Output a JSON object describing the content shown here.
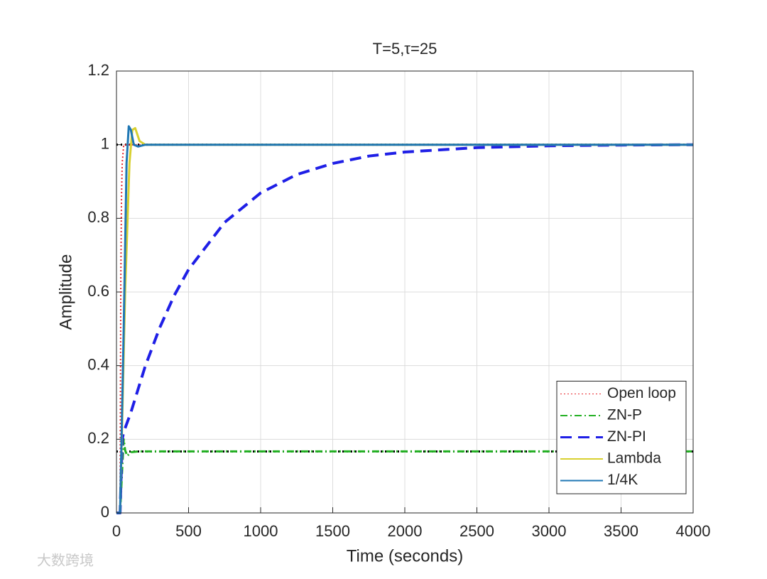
{
  "chart_data": {
    "type": "line",
    "title": "T=5,τ=25",
    "x_label": "Time (seconds)",
    "y_label": "Amplitude",
    "xlim": [
      0,
      4000
    ],
    "ylim": [
      0,
      1.2
    ],
    "xticks": [
      0,
      500,
      1000,
      1500,
      2000,
      2500,
      3000,
      3500,
      4000
    ],
    "yticks": [
      0,
      0.2,
      0.4,
      0.6,
      0.8,
      1,
      1.2
    ],
    "grid": true,
    "legend_position": "lower-right",
    "reference_lines": [
      1,
      0.167
    ],
    "reference_color": "#000000",
    "series": [
      {
        "name": "Open loop",
        "color": "#e8252a",
        "style": "dotted",
        "x": [
          0,
          25,
          30,
          35,
          40,
          50,
          4000
        ],
        "values": [
          0,
          0,
          0.63,
          0.86,
          0.95,
          1,
          1
        ]
      },
      {
        "name": "ZN-P",
        "color": "#22b022",
        "style": "dashdot",
        "x": [
          0,
          25,
          40,
          50,
          60,
          75,
          100,
          150,
          4000
        ],
        "values": [
          0,
          0,
          0.12,
          0.2,
          0.17,
          0.155,
          0.165,
          0.167,
          0.167
        ]
      },
      {
        "name": "ZN-PI",
        "color": "#1f1fe6",
        "style": "dashed",
        "x": [
          0,
          25,
          40,
          50,
          100,
          200,
          300,
          400,
          500,
          750,
          1000,
          1250,
          1500,
          1750,
          2000,
          2500,
          3000,
          3500,
          4000
        ],
        "values": [
          0,
          0,
          0.2,
          0.22,
          0.273,
          0.399,
          0.503,
          0.59,
          0.661,
          0.789,
          0.869,
          0.919,
          0.949,
          0.969,
          0.98,
          0.992,
          0.997,
          0.999,
          1
        ]
      },
      {
        "name": "Lambda",
        "color": "#d8d030",
        "style": "solid",
        "x": [
          0,
          25,
          60,
          90,
          110,
          130,
          160,
          200,
          4000
        ],
        "values": [
          0,
          0,
          0.6,
          0.95,
          1.04,
          1.045,
          1.01,
          1,
          1
        ]
      },
      {
        "name": "1/4K",
        "color": "#1f77b4",
        "style": "solid",
        "x": [
          0,
          25,
          50,
          70,
          85,
          100,
          120,
          150,
          200,
          4000
        ],
        "values": [
          0,
          0,
          0.5,
          0.95,
          1.05,
          1.04,
          1,
          0.995,
          1,
          1
        ]
      }
    ],
    "watermark": "大数跨境"
  }
}
